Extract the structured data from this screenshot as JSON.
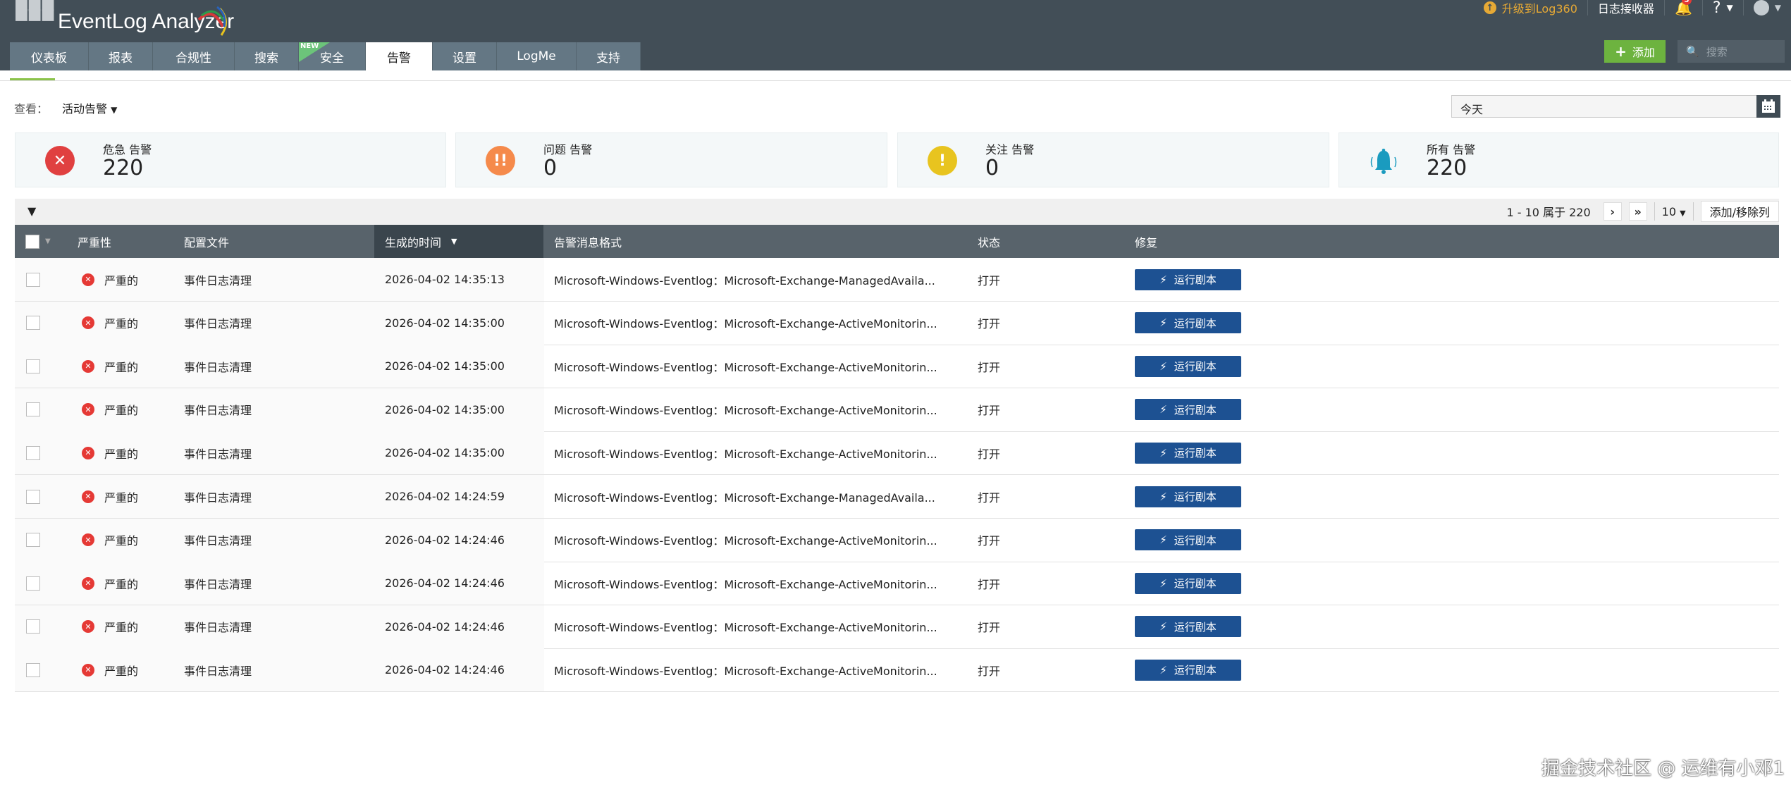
{
  "app": {
    "title": "EventLog Analyzer"
  },
  "tabs": [
    {
      "label": "仪表板"
    },
    {
      "label": "报表"
    },
    {
      "label": "合规性"
    },
    {
      "label": "搜索"
    },
    {
      "label": "安全",
      "badge": "NEW"
    },
    {
      "label": "告警",
      "active": true
    },
    {
      "label": "设置"
    },
    {
      "label": "LogMe"
    },
    {
      "label": "支持"
    }
  ],
  "topright": {
    "upgrade": "升级到Log360",
    "receiver": "日志接收器",
    "notif_count": "5",
    "help": "?"
  },
  "actions": {
    "add": "添加",
    "search_placeholder": "搜索"
  },
  "view": {
    "label": "查看：",
    "value": "活动告警"
  },
  "date": {
    "value": "今天"
  },
  "cards": [
    {
      "title": "危急 告警",
      "count": "220",
      "color": "#e04040",
      "icon": "x-circle"
    },
    {
      "title": "问题 告警",
      "count": "0",
      "color": "#f58a4b",
      "icon": "double-exclamation"
    },
    {
      "title": "关注 告警",
      "count": "0",
      "color": "#e8c41f",
      "icon": "exclamation"
    },
    {
      "title": "所有 告警",
      "count": "220",
      "color": "#1a9bbf",
      "icon": "bell"
    }
  ],
  "pager": {
    "range": "1 - 10 属于 220",
    "per_page": "10",
    "columns_btn": "添加/移除列"
  },
  "columns": {
    "severity": "严重性",
    "profile": "配置文件",
    "time": "生成的时间",
    "format": "告警消息格式",
    "status": "状态",
    "repair": "修复"
  },
  "rows": [
    {
      "severity": "严重的",
      "profile": "事件日志清理",
      "time": "2026-04-02 14:35:13",
      "message": "Microsoft-Windows-Eventlog：Microsoft-Exchange-ManagedAvaila...",
      "status": "打开",
      "action": "运行剧本"
    },
    {
      "severity": "严重的",
      "profile": "事件日志清理",
      "time": "2026-04-02 14:35:00",
      "message": "Microsoft-Windows-Eventlog：Microsoft-Exchange-ActiveMonitorin...",
      "status": "打开",
      "action": "运行剧本"
    },
    {
      "severity": "严重的",
      "profile": "事件日志清理",
      "time": "2026-04-02 14:35:00",
      "message": "Microsoft-Windows-Eventlog：Microsoft-Exchange-ActiveMonitorin...",
      "status": "打开",
      "action": "运行剧本"
    },
    {
      "severity": "严重的",
      "profile": "事件日志清理",
      "time": "2026-04-02 14:35:00",
      "message": "Microsoft-Windows-Eventlog：Microsoft-Exchange-ActiveMonitorin...",
      "status": "打开",
      "action": "运行剧本"
    },
    {
      "severity": "严重的",
      "profile": "事件日志清理",
      "time": "2026-04-02 14:35:00",
      "message": "Microsoft-Windows-Eventlog：Microsoft-Exchange-ActiveMonitorin...",
      "status": "打开",
      "action": "运行剧本"
    },
    {
      "severity": "严重的",
      "profile": "事件日志清理",
      "time": "2026-04-02 14:24:59",
      "message": "Microsoft-Windows-Eventlog：Microsoft-Exchange-ManagedAvaila...",
      "status": "打开",
      "action": "运行剧本"
    },
    {
      "severity": "严重的",
      "profile": "事件日志清理",
      "time": "2026-04-02 14:24:46",
      "message": "Microsoft-Windows-Eventlog：Microsoft-Exchange-ActiveMonitorin...",
      "status": "打开",
      "action": "运行剧本"
    },
    {
      "severity": "严重的",
      "profile": "事件日志清理",
      "time": "2026-04-02 14:24:46",
      "message": "Microsoft-Windows-Eventlog：Microsoft-Exchange-ActiveMonitorin...",
      "status": "打开",
      "action": "运行剧本"
    },
    {
      "severity": "严重的",
      "profile": "事件日志清理",
      "time": "2026-04-02 14:24:46",
      "message": "Microsoft-Windows-Eventlog：Microsoft-Exchange-ActiveMonitorin...",
      "status": "打开",
      "action": "运行剧本"
    },
    {
      "severity": "严重的",
      "profile": "事件日志清理",
      "time": "2026-04-02 14:24:46",
      "message": "Microsoft-Windows-Eventlog：Microsoft-Exchange-ActiveMonitorin...",
      "status": "打开",
      "action": "运行剧本"
    }
  ],
  "watermark": "掘金技术社区 @ 运维有小邓1"
}
